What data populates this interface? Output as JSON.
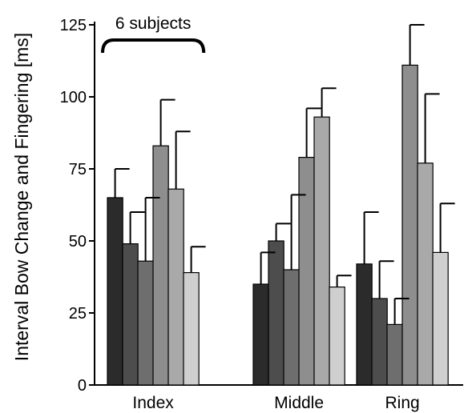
{
  "chart_data": {
    "type": "bar",
    "ylabel": "Interval Bow Change and Fingering [ms]",
    "xlabel": "",
    "ylim": [
      0,
      125
    ],
    "yticks": [
      0,
      25,
      50,
      75,
      100,
      125
    ],
    "grid": false,
    "categories": [
      "Index",
      "Middle",
      "Ring"
    ],
    "series": [
      {
        "values": [
          65,
          35,
          42
        ],
        "errors": [
          10,
          11,
          18
        ],
        "color": "#2b2b2b"
      },
      {
        "values": [
          49,
          50,
          30
        ],
        "errors": [
          11,
          6,
          13
        ],
        "color": "#4d4d4d"
      },
      {
        "values": [
          43,
          40,
          21
        ],
        "errors": [
          22,
          26,
          9
        ],
        "color": "#6e6e6e"
      },
      {
        "values": [
          83,
          79,
          111
        ],
        "errors": [
          16,
          17,
          14
        ],
        "color": "#8e8e8e"
      },
      {
        "values": [
          68,
          93,
          77
        ],
        "errors": [
          20,
          10,
          24
        ],
        "color": "#a9a9a9"
      },
      {
        "values": [
          39,
          34,
          46
        ],
        "errors": [
          9,
          4,
          17
        ],
        "color": "#cfcfcf"
      }
    ],
    "annotation": {
      "text": "6 subjects",
      "category": "Index"
    }
  }
}
